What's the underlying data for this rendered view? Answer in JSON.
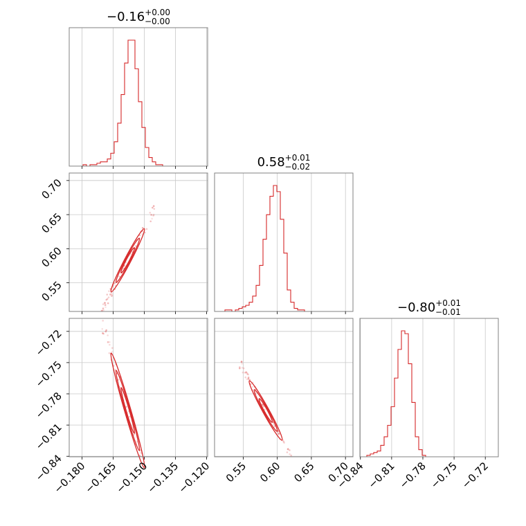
{
  "chart_data": {
    "type": "corner",
    "color": "#d62728",
    "params": [
      {
        "median": "−0.16",
        "plus": "+0.00",
        "minus": "−0.00",
        "range": [
          -0.1862,
          -0.1195
        ],
        "center": -0.158,
        "sd": 0.004,
        "ticks": [
          -0.18,
          -0.165,
          -0.15,
          -0.135,
          -0.12
        ],
        "tick_labels": [
          "−0.180",
          "−0.165",
          "−0.150",
          "−0.135",
          "−0.120"
        ],
        "hist": [
          0,
          0,
          0,
          0,
          1,
          0,
          1,
          1,
          2,
          3,
          3,
          5,
          9,
          17,
          30,
          50,
          72,
          88,
          88,
          68,
          45,
          27,
          13,
          6,
          3,
          1,
          1,
          0,
          0,
          0,
          0,
          0,
          0,
          0,
          0,
          0,
          0,
          0,
          0,
          0
        ]
      },
      {
        "median": "0.58",
        "plus": "+0.01",
        "minus": "−0.02",
        "range": [
          0.508,
          0.711
        ],
        "center": 0.583,
        "sd": 0.012,
        "ticks": [
          0.55,
          0.6,
          0.65,
          0.7
        ],
        "tick_labels": [
          "0.55",
          "0.60",
          "0.65",
          "0.70"
        ],
        "hist": [
          0,
          0,
          0,
          1,
          1,
          0,
          1,
          2,
          3,
          4,
          6,
          10,
          17,
          30,
          47,
          63,
          75,
          82,
          78,
          60,
          38,
          14,
          6,
          2,
          1,
          1,
          0,
          0,
          0,
          0,
          0,
          0,
          0,
          0,
          0,
          0,
          0,
          0,
          0,
          0
        ]
      },
      {
        "median": "−0.80",
        "plus": "+0.01",
        "minus": "−0.01",
        "range": [
          -0.8405,
          -0.7075
        ],
        "center": -0.796,
        "sd": 0.007,
        "ticks": [
          -0.84,
          -0.81,
          -0.78,
          -0.75,
          -0.72
        ],
        "tick_labels": [
          "−0.84",
          "−0.81",
          "−0.78",
          "−0.75",
          "−0.72"
        ],
        "hist": [
          0,
          0,
          1,
          2,
          3,
          4,
          8,
          14,
          22,
          35,
          55,
          75,
          88,
          86,
          65,
          38,
          14,
          5,
          1,
          0,
          0,
          0,
          0,
          0,
          0,
          0,
          0,
          0,
          0,
          0,
          0,
          0,
          0,
          0,
          0,
          0,
          0,
          0,
          0,
          0
        ]
      }
    ],
    "pairs": [
      {
        "row": 1,
        "col": 0,
        "slope": 5.8,
        "curve": 0.0
      },
      {
        "row": 2,
        "col": 0,
        "slope": -6.9,
        "curve": 0.0
      },
      {
        "row": 2,
        "col": 1,
        "slope": -1.19,
        "curve": 0.0
      }
    ]
  }
}
